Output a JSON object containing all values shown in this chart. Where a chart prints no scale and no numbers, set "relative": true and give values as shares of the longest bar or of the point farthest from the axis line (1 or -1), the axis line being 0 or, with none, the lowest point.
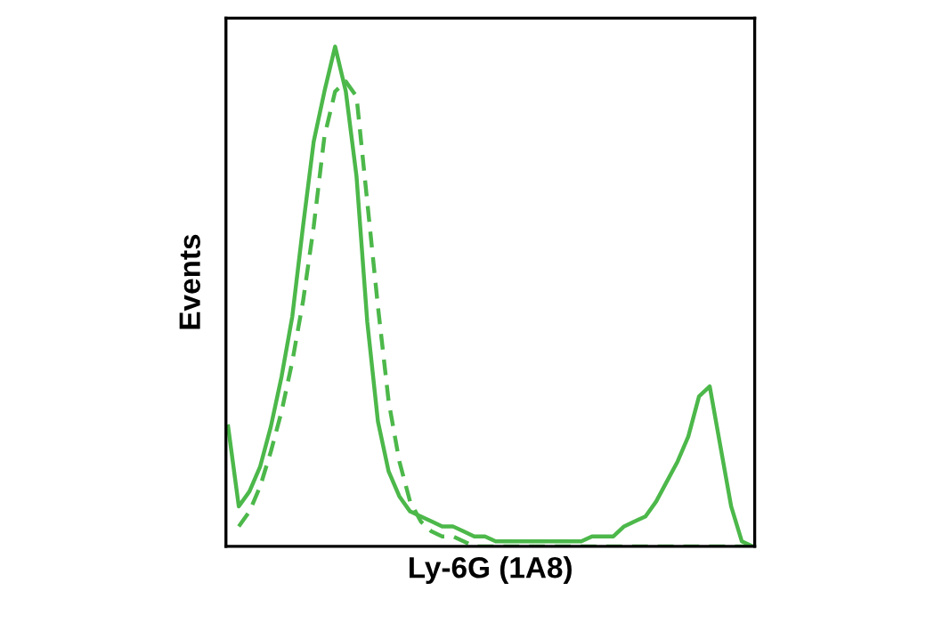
{
  "chart_data": {
    "type": "line",
    "relative": true,
    "xlabel": "Ly-6G (1A8)",
    "ylabel": "Events",
    "tick_labels": false,
    "legend": false,
    "categories": [
      null,
      null,
      null,
      null,
      null,
      null,
      null,
      null,
      null,
      null,
      null,
      null,
      null,
      null,
      null,
      null,
      null,
      null,
      null,
      null,
      null,
      null,
      null,
      null,
      null,
      null,
      null,
      null,
      null,
      null,
      null,
      null,
      null,
      null,
      null,
      null,
      null,
      null,
      null,
      null,
      null,
      null,
      null,
      null,
      null,
      null,
      null,
      null,
      null,
      null
    ],
    "series": [
      {
        "color": "#4cb84a",
        "line_style": "solid",
        "values": [
          0.24,
          0.08,
          0.11,
          0.16,
          0.24,
          0.34,
          0.46,
          0.64,
          0.81,
          0.91,
          1.0,
          0.91,
          0.74,
          0.45,
          0.25,
          0.15,
          0.1,
          0.07,
          0.06,
          0.05,
          0.04,
          0.04,
          0.03,
          0.02,
          0.02,
          0.01,
          0.01,
          0.01,
          0.01,
          0.01,
          0.01,
          0.01,
          0.01,
          0.01,
          0.02,
          0.02,
          0.02,
          0.04,
          0.05,
          0.06,
          0.09,
          0.13,
          0.17,
          0.22,
          0.3,
          0.32,
          0.2,
          0.08,
          0.01,
          0.0
        ]
      },
      {
        "color": "#4cb84a",
        "line_style": "dashed",
        "values": [
          null,
          0.04,
          0.07,
          0.12,
          0.19,
          0.27,
          0.37,
          0.49,
          0.64,
          0.82,
          0.91,
          0.93,
          0.9,
          0.69,
          0.48,
          0.29,
          0.17,
          0.09,
          0.05,
          0.03,
          0.02,
          0.02,
          0.01,
          0.0,
          0.0,
          0.0,
          0.0,
          0.0,
          0.0,
          0.0,
          0.0,
          0.0,
          0.0,
          0.0,
          0.0,
          0.0,
          0.0,
          0.0,
          0.0,
          0.0,
          0.0,
          0.0,
          0.0,
          0.0,
          0.0,
          0.0,
          0.0,
          0.0,
          0.0,
          0.0
        ]
      }
    ]
  }
}
